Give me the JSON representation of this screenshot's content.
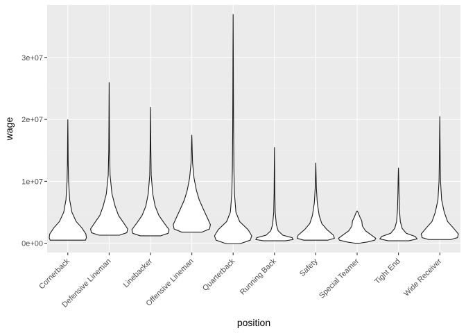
{
  "chart_data": {
    "type": "violin",
    "xlabel": "position",
    "ylabel": "wage",
    "ylim": [
      -1500000,
      38500000
    ],
    "yticks": [
      {
        "value": 0,
        "label": "0e+00"
      },
      {
        "value": 10000000,
        "label": "1e+07"
      },
      {
        "value": 20000000,
        "label": "2e+07"
      },
      {
        "value": 30000000,
        "label": "3e+07"
      }
    ],
    "grid": true,
    "colors": {
      "panel": "#ebebeb",
      "grid": "#ffffff",
      "violin_fill": "#ffffff",
      "violin_stroke": "#1a1a1a"
    },
    "categories": [
      {
        "name": "Cornerback",
        "min": 500000,
        "max": 20000000,
        "density": [
          [
            500000,
            0.95
          ],
          [
            900000,
            1.0
          ],
          [
            1500000,
            0.97
          ],
          [
            2500000,
            0.75
          ],
          [
            3500000,
            0.45
          ],
          [
            5000000,
            0.22
          ],
          [
            7000000,
            0.1
          ],
          [
            10000000,
            0.04
          ],
          [
            13000000,
            0.02
          ],
          [
            17000000,
            0.01
          ],
          [
            20000000,
            0.0
          ]
        ]
      },
      {
        "name": "Defensive Lineman",
        "min": 1300000,
        "max": 26000000,
        "density": [
          [
            1300000,
            0.55
          ],
          [
            1700000,
            0.95
          ],
          [
            2300000,
            1.0
          ],
          [
            3200000,
            0.8
          ],
          [
            4500000,
            0.5
          ],
          [
            6000000,
            0.32
          ],
          [
            8000000,
            0.15
          ],
          [
            11000000,
            0.05
          ],
          [
            15000000,
            0.02
          ],
          [
            20000000,
            0.01
          ],
          [
            26000000,
            0.0
          ]
        ]
      },
      {
        "name": "Linebacker",
        "min": 1200000,
        "max": 22000000,
        "density": [
          [
            1200000,
            0.55
          ],
          [
            1600000,
            0.95
          ],
          [
            2200000,
            1.0
          ],
          [
            3200000,
            0.75
          ],
          [
            4500000,
            0.45
          ],
          [
            6000000,
            0.25
          ],
          [
            8000000,
            0.12
          ],
          [
            11000000,
            0.04
          ],
          [
            15000000,
            0.02
          ],
          [
            22000000,
            0.0
          ]
        ]
      },
      {
        "name": "Offensive Lineman",
        "min": 1800000,
        "max": 17500000,
        "density": [
          [
            1800000,
            0.55
          ],
          [
            2300000,
            0.95
          ],
          [
            3000000,
            1.0
          ],
          [
            4000000,
            0.85
          ],
          [
            5500000,
            0.62
          ],
          [
            7000000,
            0.4
          ],
          [
            8500000,
            0.25
          ],
          [
            10500000,
            0.12
          ],
          [
            13000000,
            0.04
          ],
          [
            17500000,
            0.0
          ]
        ]
      },
      {
        "name": "Quarterback",
        "min": -100000,
        "max": 37000000,
        "density": [
          [
            -100000,
            0.35
          ],
          [
            500000,
            0.92
          ],
          [
            1200000,
            1.0
          ],
          [
            2200000,
            0.8
          ],
          [
            3500000,
            0.35
          ],
          [
            5000000,
            0.15
          ],
          [
            8000000,
            0.07
          ],
          [
            12000000,
            0.04
          ],
          [
            18000000,
            0.025
          ],
          [
            25000000,
            0.015
          ],
          [
            30000000,
            0.01
          ],
          [
            37000000,
            0.0
          ]
        ]
      },
      {
        "name": "Running Back",
        "min": 400000,
        "max": 15500000,
        "density": [
          [
            400000,
            0.6
          ],
          [
            600000,
            1.0
          ],
          [
            900000,
            0.95
          ],
          [
            1300000,
            0.45
          ],
          [
            2000000,
            0.2
          ],
          [
            3000000,
            0.1
          ],
          [
            5000000,
            0.04
          ],
          [
            8000000,
            0.02
          ],
          [
            12000000,
            0.01
          ],
          [
            15500000,
            0.0
          ]
        ]
      },
      {
        "name": "Safety",
        "min": 500000,
        "max": 13000000,
        "density": [
          [
            500000,
            0.65
          ],
          [
            800000,
            1.0
          ],
          [
            1300000,
            0.95
          ],
          [
            2200000,
            0.6
          ],
          [
            3200000,
            0.32
          ],
          [
            4500000,
            0.18
          ],
          [
            6500000,
            0.08
          ],
          [
            9000000,
            0.03
          ],
          [
            13000000,
            0.0
          ]
        ]
      },
      {
        "name": "Special Teamer",
        "min": 0,
        "max": 5200000,
        "density": [
          [
            0,
            0.1
          ],
          [
            200000,
            0.55
          ],
          [
            500000,
            0.95
          ],
          [
            800000,
            1.0
          ],
          [
            1300000,
            0.78
          ],
          [
            2000000,
            0.45
          ],
          [
            2800000,
            0.28
          ],
          [
            3600000,
            0.25
          ],
          [
            4300000,
            0.14
          ],
          [
            5000000,
            0.05
          ],
          [
            5200000,
            0.0
          ]
        ]
      },
      {
        "name": "Tight End",
        "min": 400000,
        "max": 12200000,
        "density": [
          [
            400000,
            0.55
          ],
          [
            700000,
            1.0
          ],
          [
            1100000,
            0.9
          ],
          [
            1600000,
            0.42
          ],
          [
            2400000,
            0.2
          ],
          [
            3500000,
            0.1
          ],
          [
            5500000,
            0.05
          ],
          [
            8000000,
            0.03
          ],
          [
            10500000,
            0.015
          ],
          [
            12200000,
            0.0
          ]
        ]
      },
      {
        "name": "Wide Receiver",
        "min": 600000,
        "max": 20500000,
        "density": [
          [
            600000,
            0.6
          ],
          [
            900000,
            0.95
          ],
          [
            1500000,
            1.0
          ],
          [
            2500000,
            0.72
          ],
          [
            3500000,
            0.42
          ],
          [
            5000000,
            0.24
          ],
          [
            7000000,
            0.1
          ],
          [
            10000000,
            0.04
          ],
          [
            14000000,
            0.02
          ],
          [
            20500000,
            0.0
          ]
        ]
      }
    ]
  }
}
